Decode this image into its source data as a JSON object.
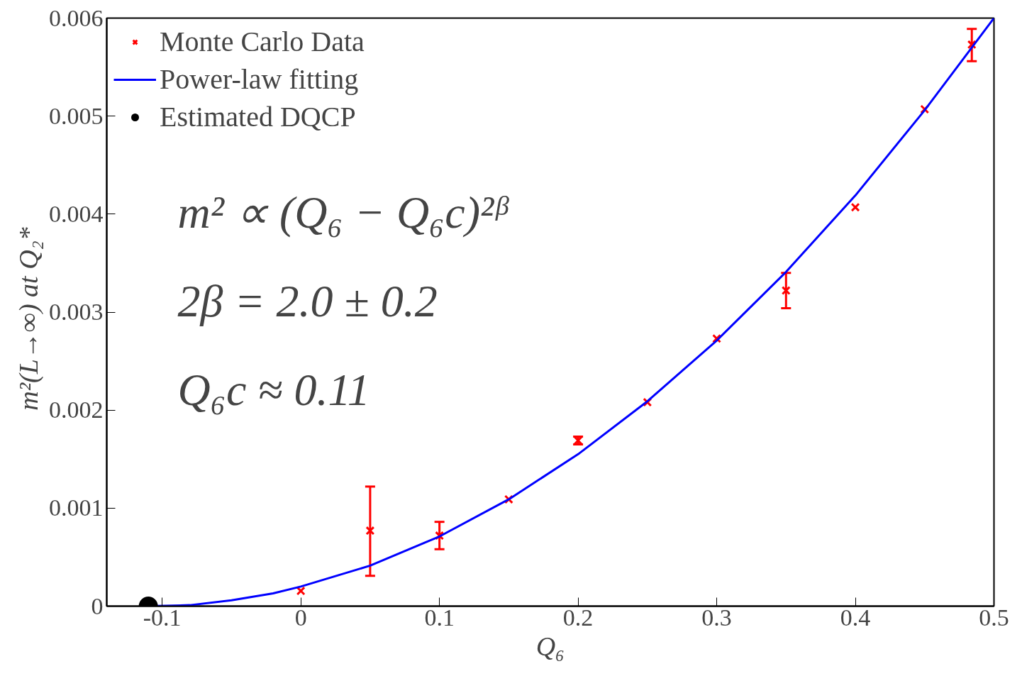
{
  "chart_data": {
    "type": "scatter",
    "xlabel": "Q₆",
    "ylabel": "m²(L→∞)  at  Q₂*",
    "xlim": [
      -0.14,
      0.5
    ],
    "ylim": [
      0,
      0.006
    ],
    "xticks": [
      -0.1,
      0,
      0.1,
      0.2,
      0.3,
      0.4,
      0.5
    ],
    "yticks": [
      0,
      0.001,
      0.002,
      0.003,
      0.004,
      0.005,
      0.006
    ],
    "grid": false,
    "legend": "top left",
    "series": [
      {
        "name": "Monte Carlo Data",
        "marker": "cross",
        "color": "#ff0000",
        "x": [
          0,
          0.05,
          0.1,
          0.15,
          0.2,
          0.25,
          0.3,
          0.35,
          0.4,
          0.45,
          0.484
        ],
        "values": [
          0.000155,
          0.00077,
          0.00072,
          0.00109,
          0.00169,
          0.00208,
          0.00273,
          0.00322,
          0.00407,
          0.00507,
          0.00573
        ],
        "errors": [
          null,
          [
            0.00031,
            0.00122
          ],
          [
            0.00058,
            0.00086
          ],
          null,
          4e-05,
          null,
          null,
          [
            0.00304,
            0.0034
          ],
          null,
          null,
          [
            0.00556,
            0.00589
          ]
        ]
      },
      {
        "name": "Power-law fitting",
        "type": "line",
        "color": "#0000ff",
        "x": [
          -0.11,
          -0.08,
          -0.05,
          -0.02,
          0,
          0.05,
          0.1,
          0.15,
          0.2,
          0.25,
          0.3,
          0.35,
          0.4,
          0.45,
          0.5
        ],
        "values": [
          0,
          1e-05,
          6e-05,
          0.00013,
          0.0002,
          0.000413,
          0.000711,
          0.00109,
          0.00155,
          0.00209,
          0.00271,
          0.00341,
          0.00419,
          0.00506,
          0.006
        ]
      },
      {
        "name": "Estimated DQCP",
        "marker": "circle",
        "color": "#000000",
        "x": [
          -0.11
        ],
        "values": [
          0
        ]
      }
    ],
    "annotations": [
      "m² ∝ (Q₆ − Q₆c)²ᵝ",
      "2β = 2.0 ± 0.2",
      "Q₆c ≈ 0.11"
    ]
  }
}
